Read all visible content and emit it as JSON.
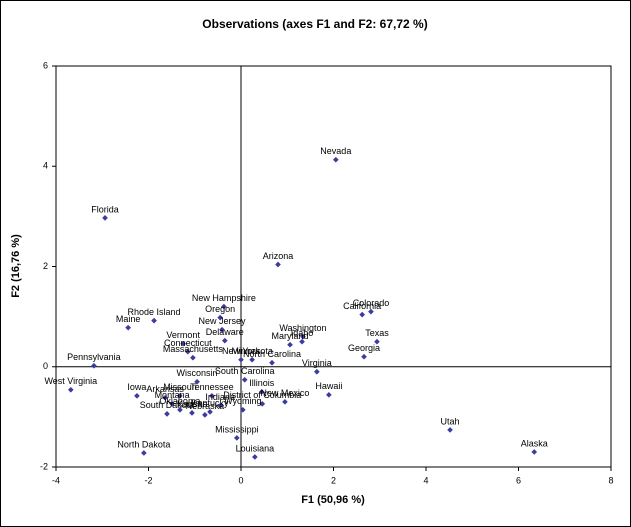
{
  "chart_data": {
    "type": "scatter",
    "title": "Observations (axes F1 and F2: 67,72 %)",
    "x_label": "F1 (50,96 %)",
    "y_label": "F2 (16,76 %)",
    "xlim": [
      -4,
      8
    ],
    "ylim": [
      -2,
      6
    ],
    "xticks": [
      -4,
      -2,
      0,
      2,
      4,
      6,
      8
    ],
    "yticks": [
      -2,
      0,
      2,
      4,
      6
    ],
    "series": [
      {
        "color": "#3c3ca0",
        "labels": [
          "Nevada",
          "Florida",
          "Arizona",
          "New Hampshire",
          "Oregon",
          "Rhode Island",
          "Maine",
          "New Jersey",
          "Delaware",
          "Vermont",
          "Connecticut",
          "Massachusetts",
          "Pennsylvania",
          "West Virginia",
          "Wisconsin",
          "Iowa",
          "Arkansas",
          "Missouri",
          "Tennessee",
          "Montana",
          "South Dakota",
          "Oklahoma",
          "Kentucky",
          "Indiana",
          "Kansas",
          "Nebraska",
          "South Carolina",
          "Illinois",
          "District of Columbia",
          "New Mexico",
          "Wyoming",
          "Mississippi",
          "Louisiana",
          "North Dakota",
          "Utah",
          "Alaska",
          "Hawaii",
          "Virginia",
          "Georgia",
          "Texas",
          "California",
          "Colorado",
          "Washington",
          "Idaho",
          "Maryland",
          "North Carolina",
          "New York",
          "Minnesota"
        ],
        "x": [
          2.05,
          -2.94,
          0.8,
          -0.37,
          -0.45,
          -1.88,
          -2.44,
          -0.41,
          -0.35,
          -1.25,
          -1.15,
          -1.04,
          -3.18,
          -3.68,
          -0.95,
          -2.25,
          -1.64,
          -1.32,
          -0.63,
          -1.49,
          -1.6,
          -1.32,
          -0.67,
          -0.45,
          -1.06,
          -0.78,
          0.08,
          0.45,
          0.46,
          0.95,
          0.04,
          -0.09,
          0.3,
          -2.1,
          4.52,
          6.34,
          1.9,
          1.64,
          2.66,
          2.94,
          2.62,
          2.81,
          1.34,
          1.32,
          1.06,
          0.67,
          0.0,
          0.24
        ],
        "values": [
          4.13,
          2.97,
          2.04,
          1.2,
          0.98,
          0.92,
          0.78,
          0.74,
          0.52,
          0.46,
          0.3,
          0.18,
          0.02,
          -0.46,
          -0.3,
          -0.58,
          -0.62,
          -0.58,
          -0.58,
          -0.74,
          -0.94,
          -0.86,
          -0.9,
          -0.78,
          -0.92,
          -0.96,
          -0.26,
          -0.5,
          -0.74,
          -0.7,
          -0.86,
          -1.42,
          -1.8,
          -1.72,
          -1.26,
          -1.7,
          -0.56,
          -0.1,
          0.2,
          0.5,
          1.04,
          1.1,
          0.6,
          0.5,
          0.44,
          0.08,
          0.14,
          0.14
        ]
      }
    ]
  }
}
